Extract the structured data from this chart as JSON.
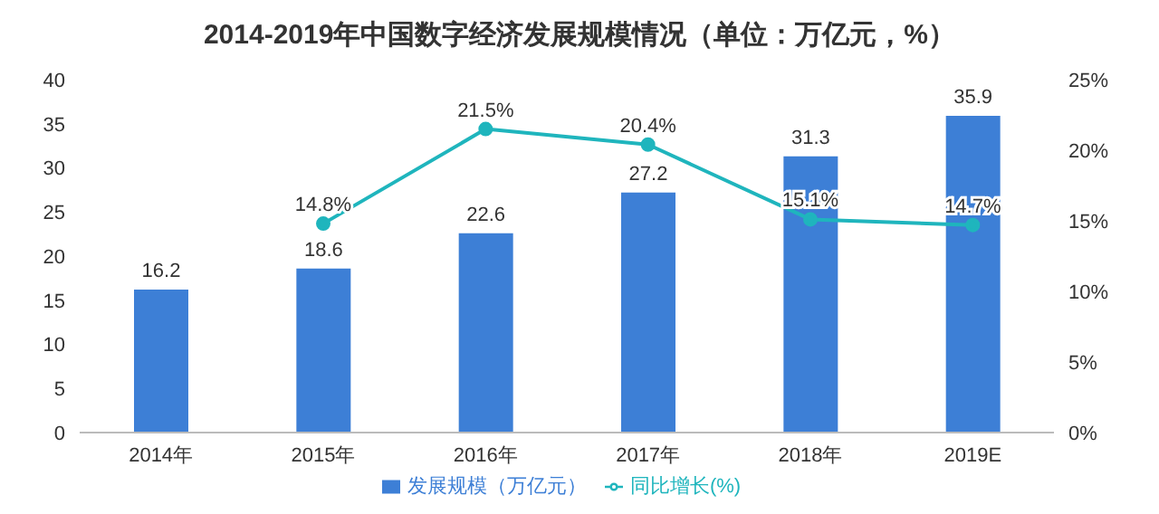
{
  "chart_data": {
    "type": "bar",
    "title": "2014-2019年中国数字经济发展规模情况（单位：万亿元，%）",
    "categories": [
      "2014年",
      "2015年",
      "2016年",
      "2017年",
      "2018年",
      "2019E"
    ],
    "series": [
      {
        "name": "发展规模（万亿元）",
        "color": "#3d7fd6",
        "values": [
          16.2,
          18.6,
          22.6,
          27.2,
          31.3,
          35.9
        ],
        "value_labels": [
          "16.2",
          "18.6",
          "22.6",
          "27.2",
          "31.3",
          "35.9"
        ]
      },
      {
        "name": "同比增长(%)",
        "type": "line",
        "axis": "y2",
        "color": "#1fb5bd",
        "marker": "circle",
        "values": [
          null,
          14.8,
          21.5,
          20.4,
          15.1,
          14.7
        ],
        "value_labels": [
          null,
          "14.8%",
          "21.5%",
          "20.4%",
          "15.1%",
          "14.7%"
        ]
      }
    ],
    "ylim": [
      0,
      40
    ],
    "yticks": [
      0,
      5,
      10,
      15,
      20,
      25,
      30,
      35,
      40
    ],
    "y2lim": [
      0,
      25
    ],
    "y2ticks": [
      {
        "value": 0,
        "label": "0%"
      },
      {
        "value": 5,
        "label": "5%"
      },
      {
        "value": 10,
        "label": "10%"
      },
      {
        "value": 15,
        "label": "15%"
      },
      {
        "value": 20,
        "label": "20%"
      },
      {
        "value": 25,
        "label": "25%"
      }
    ],
    "grid": false,
    "legend": "bottom"
  }
}
